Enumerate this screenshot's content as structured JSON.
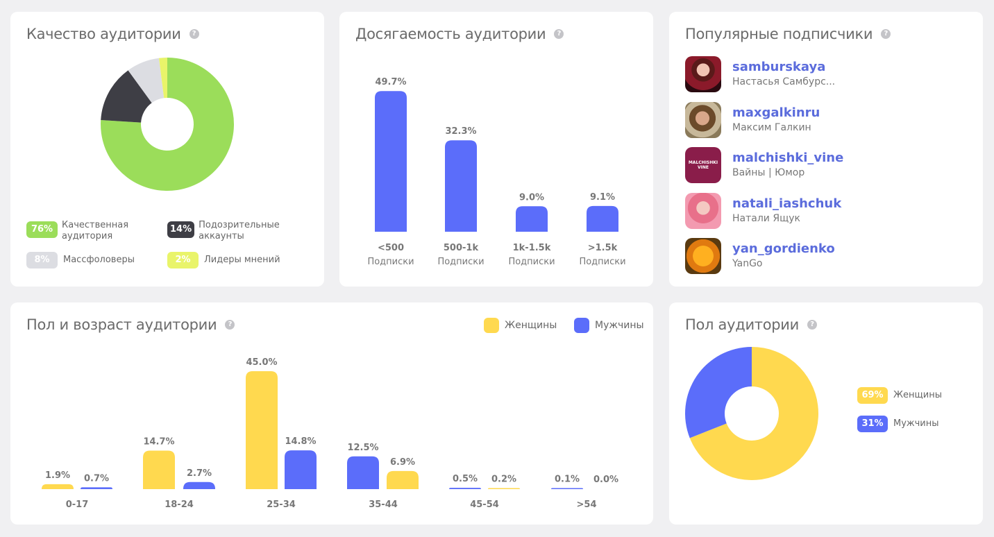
{
  "quality": {
    "title": "Качество аудитории",
    "legend": [
      {
        "pct": "76%",
        "label": "Качественная аудитория",
        "color": "#9bdd5a"
      },
      {
        "pct": "14%",
        "label": "Подозрительные аккаунты",
        "color": "#3e3e45"
      },
      {
        "pct": "8%",
        "label": "Массфоловеры",
        "color": "#dcdde2"
      },
      {
        "pct": "2%",
        "label": "Лидеры мнений",
        "color": "#e9f46a"
      }
    ]
  },
  "reach": {
    "title": "Досягаемость аудитории"
  },
  "followers": {
    "title": "Популярные подписчики",
    "items": [
      {
        "username": "samburskaya",
        "name": "Настасья Самбурс..."
      },
      {
        "username": "maxgalkinru",
        "name": "Максим Галкин"
      },
      {
        "username": "malchishki_vine",
        "name": "Вайны | Юмор",
        "avatar_text": "MALCHISHKI VINE"
      },
      {
        "username": "natali_iashchuk",
        "name": "Натали Ящук"
      },
      {
        "username": "yan_gordienko",
        "name": "YanGo"
      }
    ]
  },
  "gender_age": {
    "title": "Пол и возраст аудитории",
    "legend_female": "Женщины",
    "legend_male": "Мужчины"
  },
  "gender": {
    "title": "Пол аудитории",
    "legend": [
      {
        "pct": "69%",
        "label": "Женщины",
        "color": "#ffd94f"
      },
      {
        "pct": "31%",
        "label": "Мужчины",
        "color": "#5b6dfa"
      }
    ]
  },
  "chart_data": [
    {
      "type": "pie",
      "title": "Качество аудитории",
      "labels": [
        "Качественная аудитория",
        "Подозрительные аккаунты",
        "Массфоловеры",
        "Лидеры мнений"
      ],
      "values": [
        76,
        14,
        8,
        2
      ],
      "colors": [
        "#9bdd5a",
        "#3e3e45",
        "#dcdde2",
        "#e9f46a"
      ],
      "donut": true
    },
    {
      "type": "bar",
      "title": "Досягаемость аудитории",
      "categories": [
        "<500",
        "500-1k",
        "1k-1.5k",
        ">1.5k"
      ],
      "sublabel": "Подписки",
      "values": [
        49.7,
        32.3,
        9.0,
        9.1
      ],
      "value_labels": [
        "49.7%",
        "32.3%",
        "9.0%",
        "9.1%"
      ],
      "color": "#5b6dfa",
      "ylim": [
        0,
        50
      ]
    },
    {
      "type": "bar",
      "title": "Пол и возраст аудитории",
      "categories": [
        "0-17",
        "18-24",
        "25-34",
        "35-44",
        "45-54",
        ">54"
      ],
      "series": [
        {
          "values": [
            1.9,
            14.7,
            45.0,
            12.5,
            0.5,
            0.1
          ],
          "labels": [
            "1.9%",
            "14.7%",
            "45.0%",
            "12.5%",
            "0.5%",
            "0.1%"
          ]
        },
        {
          "values": [
            0.7,
            2.7,
            14.8,
            6.9,
            0.2,
            0.0
          ],
          "labels": [
            "0.7%",
            "2.7%",
            "14.8%",
            "6.9%",
            "0.2%",
            "0.0%"
          ]
        }
      ],
      "bar_colors": [
        [
          "#ffd94f",
          "#5b6dfa"
        ],
        [
          "#ffd94f",
          "#5b6dfa"
        ],
        [
          "#ffd94f",
          "#5b6dfa"
        ],
        [
          "#5b6dfa",
          "#ffd94f"
        ],
        [
          "#5b6dfa",
          "#ffd94f"
        ],
        [
          "#5b6dfa",
          "#ffd94f"
        ]
      ],
      "ylim": [
        0,
        45
      ]
    },
    {
      "type": "pie",
      "title": "Пол аудитории",
      "labels": [
        "Женщины",
        "Мужчины"
      ],
      "values": [
        69,
        31
      ],
      "colors": [
        "#ffd94f",
        "#5b6dfa"
      ],
      "donut": true
    }
  ]
}
